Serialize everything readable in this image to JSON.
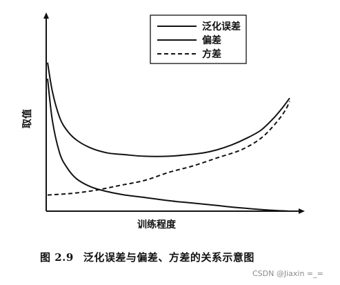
{
  "chart_data": {
    "type": "line",
    "ylabel": "取值",
    "xlabel": "训练程度",
    "legend_position": "top-right",
    "grid": false,
    "series": [
      {
        "name": "泛化误差",
        "style": "solid",
        "x": [
          0,
          0.02,
          0.05,
          0.08,
          0.12,
          0.18,
          0.25,
          0.32,
          0.4,
          0.5,
          0.58,
          0.64,
          0.7,
          0.76,
          0.82,
          0.88,
          0.93,
          0.97,
          1.0
        ],
        "y": [
          0.92,
          0.74,
          0.58,
          0.5,
          0.44,
          0.39,
          0.36,
          0.35,
          0.34,
          0.34,
          0.35,
          0.36,
          0.38,
          0.41,
          0.45,
          0.5,
          0.57,
          0.64,
          0.7
        ]
      },
      {
        "name": "偏差",
        "style": "solid",
        "x": [
          0,
          0.02,
          0.05,
          0.08,
          0.12,
          0.18,
          0.25,
          0.32,
          0.4,
          0.5,
          0.6,
          0.7,
          0.8,
          0.9,
          1.0
        ],
        "y": [
          0.82,
          0.56,
          0.36,
          0.27,
          0.2,
          0.15,
          0.12,
          0.1,
          0.085,
          0.065,
          0.05,
          0.035,
          0.02,
          0.008,
          0.0
        ]
      },
      {
        "name": "方差",
        "style": "dashed",
        "x": [
          0,
          0.1,
          0.2,
          0.3,
          0.4,
          0.5,
          0.6,
          0.7,
          0.8,
          0.88,
          0.94,
          0.98,
          1.0
        ],
        "y": [
          0.1,
          0.11,
          0.13,
          0.16,
          0.19,
          0.24,
          0.28,
          0.33,
          0.38,
          0.45,
          0.54,
          0.62,
          0.68
        ]
      }
    ]
  },
  "caption": {
    "figure_number": "图 2.9",
    "text": "泛化误差与偏差、方差的关系示意图"
  },
  "watermark": "CSDN @Jiaxin =_="
}
